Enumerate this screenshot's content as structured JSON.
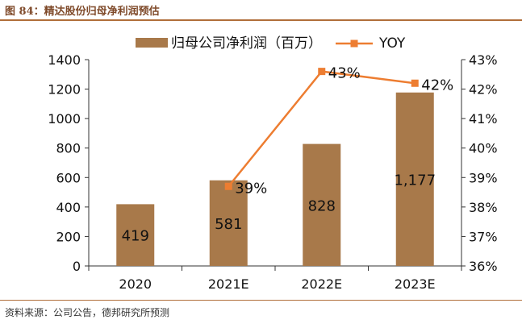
{
  "figure_title": "图 84：精达股份归母净利润预估",
  "source_note": "资料来源：公司公告，德邦研究所预测",
  "colors": {
    "bar": "#a8794a",
    "line": "#ed7d31",
    "accent": "#b06e3a"
  },
  "chart_data": {
    "type": "bar",
    "categories": [
      "2020",
      "2021E",
      "2022E",
      "2023E"
    ],
    "series": [
      {
        "name": "归母公司净利润（百万）",
        "type": "bar",
        "axis": "left",
        "values": [
          419,
          581,
          828,
          1177
        ],
        "labels": [
          "419",
          "581",
          "828",
          "1,177"
        ]
      },
      {
        "name": "YOY",
        "type": "line",
        "axis": "right",
        "values": [
          null,
          38.7,
          42.6,
          42.2
        ],
        "labels": [
          "",
          "39%",
          "43%",
          "42%"
        ]
      }
    ],
    "y_left": {
      "min": 0,
      "max": 1400,
      "ticks": [
        "0",
        "200",
        "400",
        "600",
        "800",
        "1000",
        "1200",
        "1400"
      ]
    },
    "y_right": {
      "min": 36,
      "max": 43,
      "ticks": [
        "36%",
        "37%",
        "38%",
        "39%",
        "40%",
        "41%",
        "42%",
        "43%"
      ]
    },
    "legend_position": "top",
    "grid": false
  }
}
